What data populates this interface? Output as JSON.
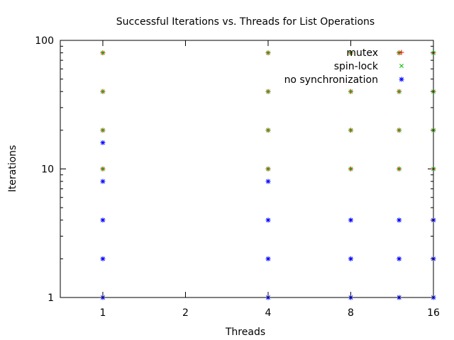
{
  "chart_data": {
    "type": "scatter",
    "title": "Successful Iterations vs. Threads for List Operations",
    "xlabel": "Threads",
    "ylabel": "Iterations",
    "xscale": "log2",
    "yscale": "log10",
    "xlim": [
      0.7,
      16
    ],
    "ylim": [
      1,
      100
    ],
    "xticks": [
      1,
      2,
      4,
      8,
      16
    ],
    "xtick_labels": [
      "1",
      "2",
      "4",
      "8",
      "16"
    ],
    "yticks": [
      1,
      10,
      100
    ],
    "ytick_labels": [
      "1",
      "10",
      "100"
    ],
    "legend_position": "top-right",
    "series": [
      {
        "name": "mutex",
        "color": "#ff0000",
        "marker": "plus",
        "points": [
          {
            "x": 1,
            "y": 10
          },
          {
            "x": 1,
            "y": 20
          },
          {
            "x": 1,
            "y": 40
          },
          {
            "x": 1,
            "y": 80
          },
          {
            "x": 4,
            "y": 10
          },
          {
            "x": 4,
            "y": 20
          },
          {
            "x": 4,
            "y": 40
          },
          {
            "x": 4,
            "y": 80
          },
          {
            "x": 8,
            "y": 10
          },
          {
            "x": 8,
            "y": 20
          },
          {
            "x": 8,
            "y": 40
          },
          {
            "x": 8,
            "y": 80
          },
          {
            "x": 12,
            "y": 10
          },
          {
            "x": 12,
            "y": 20
          },
          {
            "x": 12,
            "y": 40
          },
          {
            "x": 12,
            "y": 80
          },
          {
            "x": 16,
            "y": 10
          },
          {
            "x": 16,
            "y": 20
          },
          {
            "x": 16,
            "y": 40
          },
          {
            "x": 16,
            "y": 80
          }
        ]
      },
      {
        "name": "spin-lock",
        "color": "#00c000",
        "marker": "cross",
        "points": [
          {
            "x": 1,
            "y": 10
          },
          {
            "x": 1,
            "y": 20
          },
          {
            "x": 1,
            "y": 40
          },
          {
            "x": 1,
            "y": 80
          },
          {
            "x": 4,
            "y": 10
          },
          {
            "x": 4,
            "y": 20
          },
          {
            "x": 4,
            "y": 40
          },
          {
            "x": 4,
            "y": 80
          },
          {
            "x": 8,
            "y": 10
          },
          {
            "x": 8,
            "y": 20
          },
          {
            "x": 8,
            "y": 40
          },
          {
            "x": 8,
            "y": 80
          },
          {
            "x": 12,
            "y": 10
          },
          {
            "x": 12,
            "y": 20
          },
          {
            "x": 12,
            "y": 40
          },
          {
            "x": 12,
            "y": 80
          },
          {
            "x": 16,
            "y": 10
          },
          {
            "x": 16,
            "y": 20
          },
          {
            "x": 16,
            "y": 40
          },
          {
            "x": 16,
            "y": 80
          }
        ]
      },
      {
        "name": "no synchronization",
        "color": "#0000ff",
        "marker": "star",
        "points": [
          {
            "x": 1,
            "y": 1
          },
          {
            "x": 1,
            "y": 2
          },
          {
            "x": 1,
            "y": 4
          },
          {
            "x": 1,
            "y": 8
          },
          {
            "x": 1,
            "y": 16
          },
          {
            "x": 4,
            "y": 1
          },
          {
            "x": 4,
            "y": 2
          },
          {
            "x": 4,
            "y": 4
          },
          {
            "x": 4,
            "y": 8
          },
          {
            "x": 8,
            "y": 1
          },
          {
            "x": 8,
            "y": 2
          },
          {
            "x": 8,
            "y": 4
          },
          {
            "x": 12,
            "y": 1
          },
          {
            "x": 12,
            "y": 2
          },
          {
            "x": 12,
            "y": 4
          },
          {
            "x": 16,
            "y": 1
          },
          {
            "x": 16,
            "y": 2
          },
          {
            "x": 16,
            "y": 4
          }
        ]
      }
    ]
  }
}
